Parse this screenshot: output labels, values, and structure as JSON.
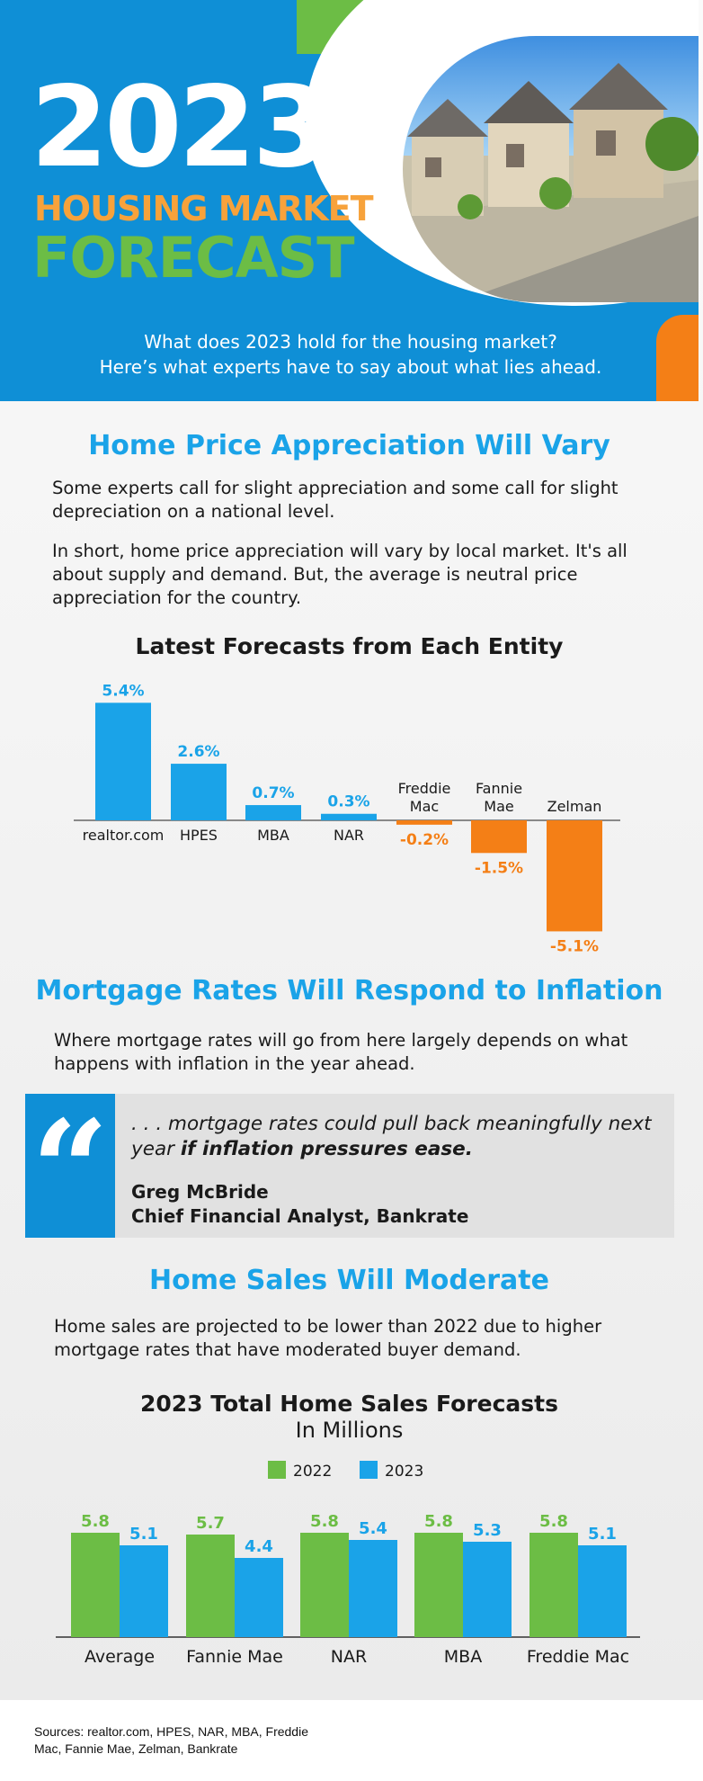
{
  "header": {
    "year": "2023",
    "title_line1": "HOUSING MARKET",
    "title_line2": "FORECAST",
    "intro_line1": "What does 2023 hold for the housing market?",
    "intro_line2": "Here’s what experts have to say about what lies ahead."
  },
  "section1": {
    "heading": "Home Price Appreciation Will Vary",
    "para1": "Some experts call for slight appreciation and some call for slight depreciation on a national level.",
    "para2": "In short, home price appreciation will vary by local market. It's all about supply and demand. But, the average is neutral price appreciation for the country."
  },
  "section2": {
    "heading": "Mortgage Rates Will Respond to Inflation",
    "para": "Where mortgage rates will go from here largely depends on what happens with inflation in the year ahead.",
    "quote_text": ". . . mortgage rates could pull back meaningfully next year ",
    "quote_emphasis": "if inflation pressures ease.",
    "quote_name": "Greg McBride",
    "quote_role": "Chief Financial Analyst, Bankrate"
  },
  "section3": {
    "heading": "Home Sales Will Moderate",
    "para": "Home sales are projected to be lower than 2022 due to higher mortgage rates that have moderated buyer demand."
  },
  "sources": "Sources: realtor.com, HPES, NAR, MBA, Freddie Mac, Fannie Mae, Zelman, Bankrate",
  "colors": {
    "blue": "#1aa3e8",
    "orange": "#f47f16",
    "green": "#6cbd45"
  },
  "chart_data": [
    {
      "type": "bar",
      "title": "Latest Forecasts from Each Entity",
      "categories": [
        "realtor.com",
        "HPES",
        "MBA",
        "NAR",
        "Freddie Mac",
        "Fannie Mae",
        "Zelman"
      ],
      "values": [
        5.4,
        2.6,
        0.7,
        0.3,
        -0.2,
        -1.5,
        -5.1
      ],
      "value_labels": [
        "5.4%",
        "2.6%",
        "0.7%",
        "0.3%",
        "-0.2%",
        "-1.5%",
        "-5.1%"
      ],
      "positive_color": "#1aa3e8",
      "negative_color": "#f47f16",
      "ylim": [
        -5.4,
        5.6
      ]
    },
    {
      "type": "bar",
      "title": "2023 Total Home Sales Forecasts",
      "subtitle": "In Millions",
      "categories": [
        "Average",
        "Fannie Mae",
        "NAR",
        "MBA",
        "Freddie Mac"
      ],
      "series": [
        {
          "name": "2022",
          "values": [
            5.8,
            5.7,
            5.8,
            5.8,
            5.8
          ],
          "color": "#6cbd45"
        },
        {
          "name": "2023",
          "values": [
            5.1,
            4.4,
            5.4,
            5.3,
            5.1
          ],
          "color": "#1aa3e8"
        }
      ],
      "legend": "top",
      "ylim": [
        0,
        6
      ]
    }
  ]
}
